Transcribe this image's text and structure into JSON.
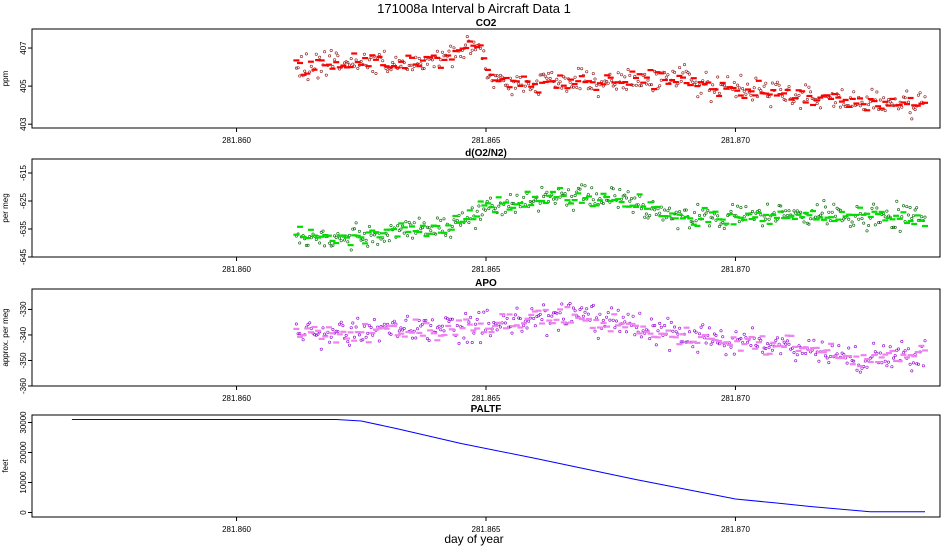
{
  "figure": {
    "title": "171008a   Interval b Aircraft Data 1",
    "xlabel": "day of year"
  },
  "chart_data": [
    {
      "type": "scatter",
      "title": "CO2",
      "ylabel": "ppm",
      "xlim": [
        281.8559,
        281.8741
      ],
      "ylim": [
        402.8,
        408.0
      ],
      "x_ticks": [
        "281.860",
        "281.865",
        "281.870"
      ],
      "x_tick_values": [
        281.86,
        281.865,
        281.87
      ],
      "y_ticks": [
        "403",
        "405",
        "407"
      ],
      "y_tick_values": [
        403,
        405,
        407
      ],
      "x_start": 281.8612,
      "x_end": 281.8738,
      "series": [
        {
          "kind": "points",
          "color": "#8B1A1A",
          "trend": [
            [
              281.8612,
              406.0
            ],
            [
              281.8625,
              406.3
            ],
            [
              281.8635,
              406.1
            ],
            [
              281.8645,
              406.8
            ],
            [
              281.8648,
              407.3
            ],
            [
              281.865,
              406.2
            ],
            [
              281.8652,
              405.1
            ],
            [
              281.8665,
              405.2
            ],
            [
              281.869,
              405.4
            ],
            [
              281.87,
              404.9
            ],
            [
              281.872,
              404.3
            ],
            [
              281.8738,
              404.0
            ]
          ],
          "noise": 0.55
        },
        {
          "kind": "segments",
          "color": "#ff0000",
          "trend": [
            [
              281.8612,
              406.0
            ],
            [
              281.8625,
              406.3
            ],
            [
              281.8635,
              406.1
            ],
            [
              281.8645,
              406.8
            ],
            [
              281.8648,
              407.3
            ],
            [
              281.865,
              406.2
            ],
            [
              281.8652,
              405.1
            ],
            [
              281.8665,
              405.2
            ],
            [
              281.869,
              405.4
            ],
            [
              281.87,
              404.9
            ],
            [
              281.872,
              404.3
            ],
            [
              281.8738,
              404.0
            ]
          ],
          "noise": 0.35
        }
      ]
    },
    {
      "type": "scatter",
      "title": "d(O2/N2)",
      "ylabel": "per meg",
      "xlim": [
        281.8559,
        281.8741
      ],
      "ylim": [
        -645,
        -610
      ],
      "x_ticks": [
        "281.860",
        "281.865",
        "281.870"
      ],
      "x_tick_values": [
        281.86,
        281.865,
        281.87
      ],
      "y_ticks": [
        "-645",
        "-635",
        "-625",
        "-615"
      ],
      "y_tick_values": [
        -645,
        -635,
        -625,
        -615
      ],
      "x_start": 281.8612,
      "x_end": 281.8738,
      "series": [
        {
          "kind": "points",
          "color": "#006400",
          "trend": [
            [
              281.8612,
              -637
            ],
            [
              281.8625,
              -638
            ],
            [
              281.8635,
              -635
            ],
            [
              281.8645,
              -633
            ],
            [
              281.865,
              -627
            ],
            [
              281.8665,
              -623
            ],
            [
              281.868,
              -626
            ],
            [
              281.869,
              -631
            ],
            [
              281.871,
              -630
            ],
            [
              281.8738,
              -631
            ]
          ],
          "noise": 3.6
        },
        {
          "kind": "segments",
          "color": "#00dd00",
          "trend": [
            [
              281.8612,
              -637
            ],
            [
              281.8625,
              -638
            ],
            [
              281.8635,
              -635
            ],
            [
              281.8645,
              -633
            ],
            [
              281.865,
              -627
            ],
            [
              281.8665,
              -623
            ],
            [
              281.868,
              -626
            ],
            [
              281.869,
              -631
            ],
            [
              281.871,
              -630
            ],
            [
              281.8738,
              -631
            ]
          ],
          "noise": 2.6
        }
      ]
    },
    {
      "type": "scatter",
      "title": "APO",
      "ylabel": "approx. per meg",
      "xlim": [
        281.8559,
        281.8741
      ],
      "ylim": [
        -360,
        -322
      ],
      "x_ticks": [
        "281.860",
        "281.865",
        "281.870"
      ],
      "x_tick_values": [
        281.86,
        281.865,
        281.87
      ],
      "y_ticks": [
        "-360",
        "-350",
        "-340",
        "-330"
      ],
      "y_tick_values": [
        -360,
        -350,
        -340,
        -330
      ],
      "x_start": 281.8612,
      "x_end": 281.8738,
      "series": [
        {
          "kind": "points",
          "color": "#9400D3",
          "trend": [
            [
              281.8612,
              -340
            ],
            [
              281.863,
              -338
            ],
            [
              281.865,
              -337
            ],
            [
              281.8665,
              -332
            ],
            [
              281.868,
              -337
            ],
            [
              281.869,
              -341
            ],
            [
              281.871,
              -344
            ],
            [
              281.8725,
              -350
            ],
            [
              281.8738,
              -346
            ]
          ],
          "noise": 4.5
        },
        {
          "kind": "segments",
          "color": "#ee82ee",
          "trend": [
            [
              281.8612,
              -340
            ],
            [
              281.863,
              -338
            ],
            [
              281.865,
              -337
            ],
            [
              281.8665,
              -332
            ],
            [
              281.868,
              -337
            ],
            [
              281.869,
              -341
            ],
            [
              281.871,
              -344
            ],
            [
              281.8725,
              -350
            ],
            [
              281.8738,
              -346
            ]
          ],
          "noise": 3.2
        }
      ]
    },
    {
      "type": "line",
      "title": "PALTF",
      "ylabel": "feet",
      "xlim": [
        281.8559,
        281.8741
      ],
      "ylim": [
        -1500,
        32500
      ],
      "x_ticks": [
        "281.860",
        "281.865",
        "281.870"
      ],
      "x_tick_values": [
        281.86,
        281.865,
        281.87
      ],
      "y_ticks": [
        "0",
        "10000",
        "20000",
        "30000"
      ],
      "y_tick_values": [
        0,
        10000,
        20000,
        30000
      ],
      "series": [
        {
          "kind": "line",
          "color": "#0000ff",
          "x": [
            281.8567,
            281.862,
            281.8625,
            281.8632,
            281.8645,
            281.866,
            281.868,
            281.87,
            281.8708,
            281.8715,
            281.8727,
            281.8738
          ],
          "y": [
            31000,
            31000,
            30500,
            28000,
            23000,
            18000,
            11000,
            4500,
            3200,
            2000,
            250,
            250
          ]
        }
      ]
    }
  ]
}
